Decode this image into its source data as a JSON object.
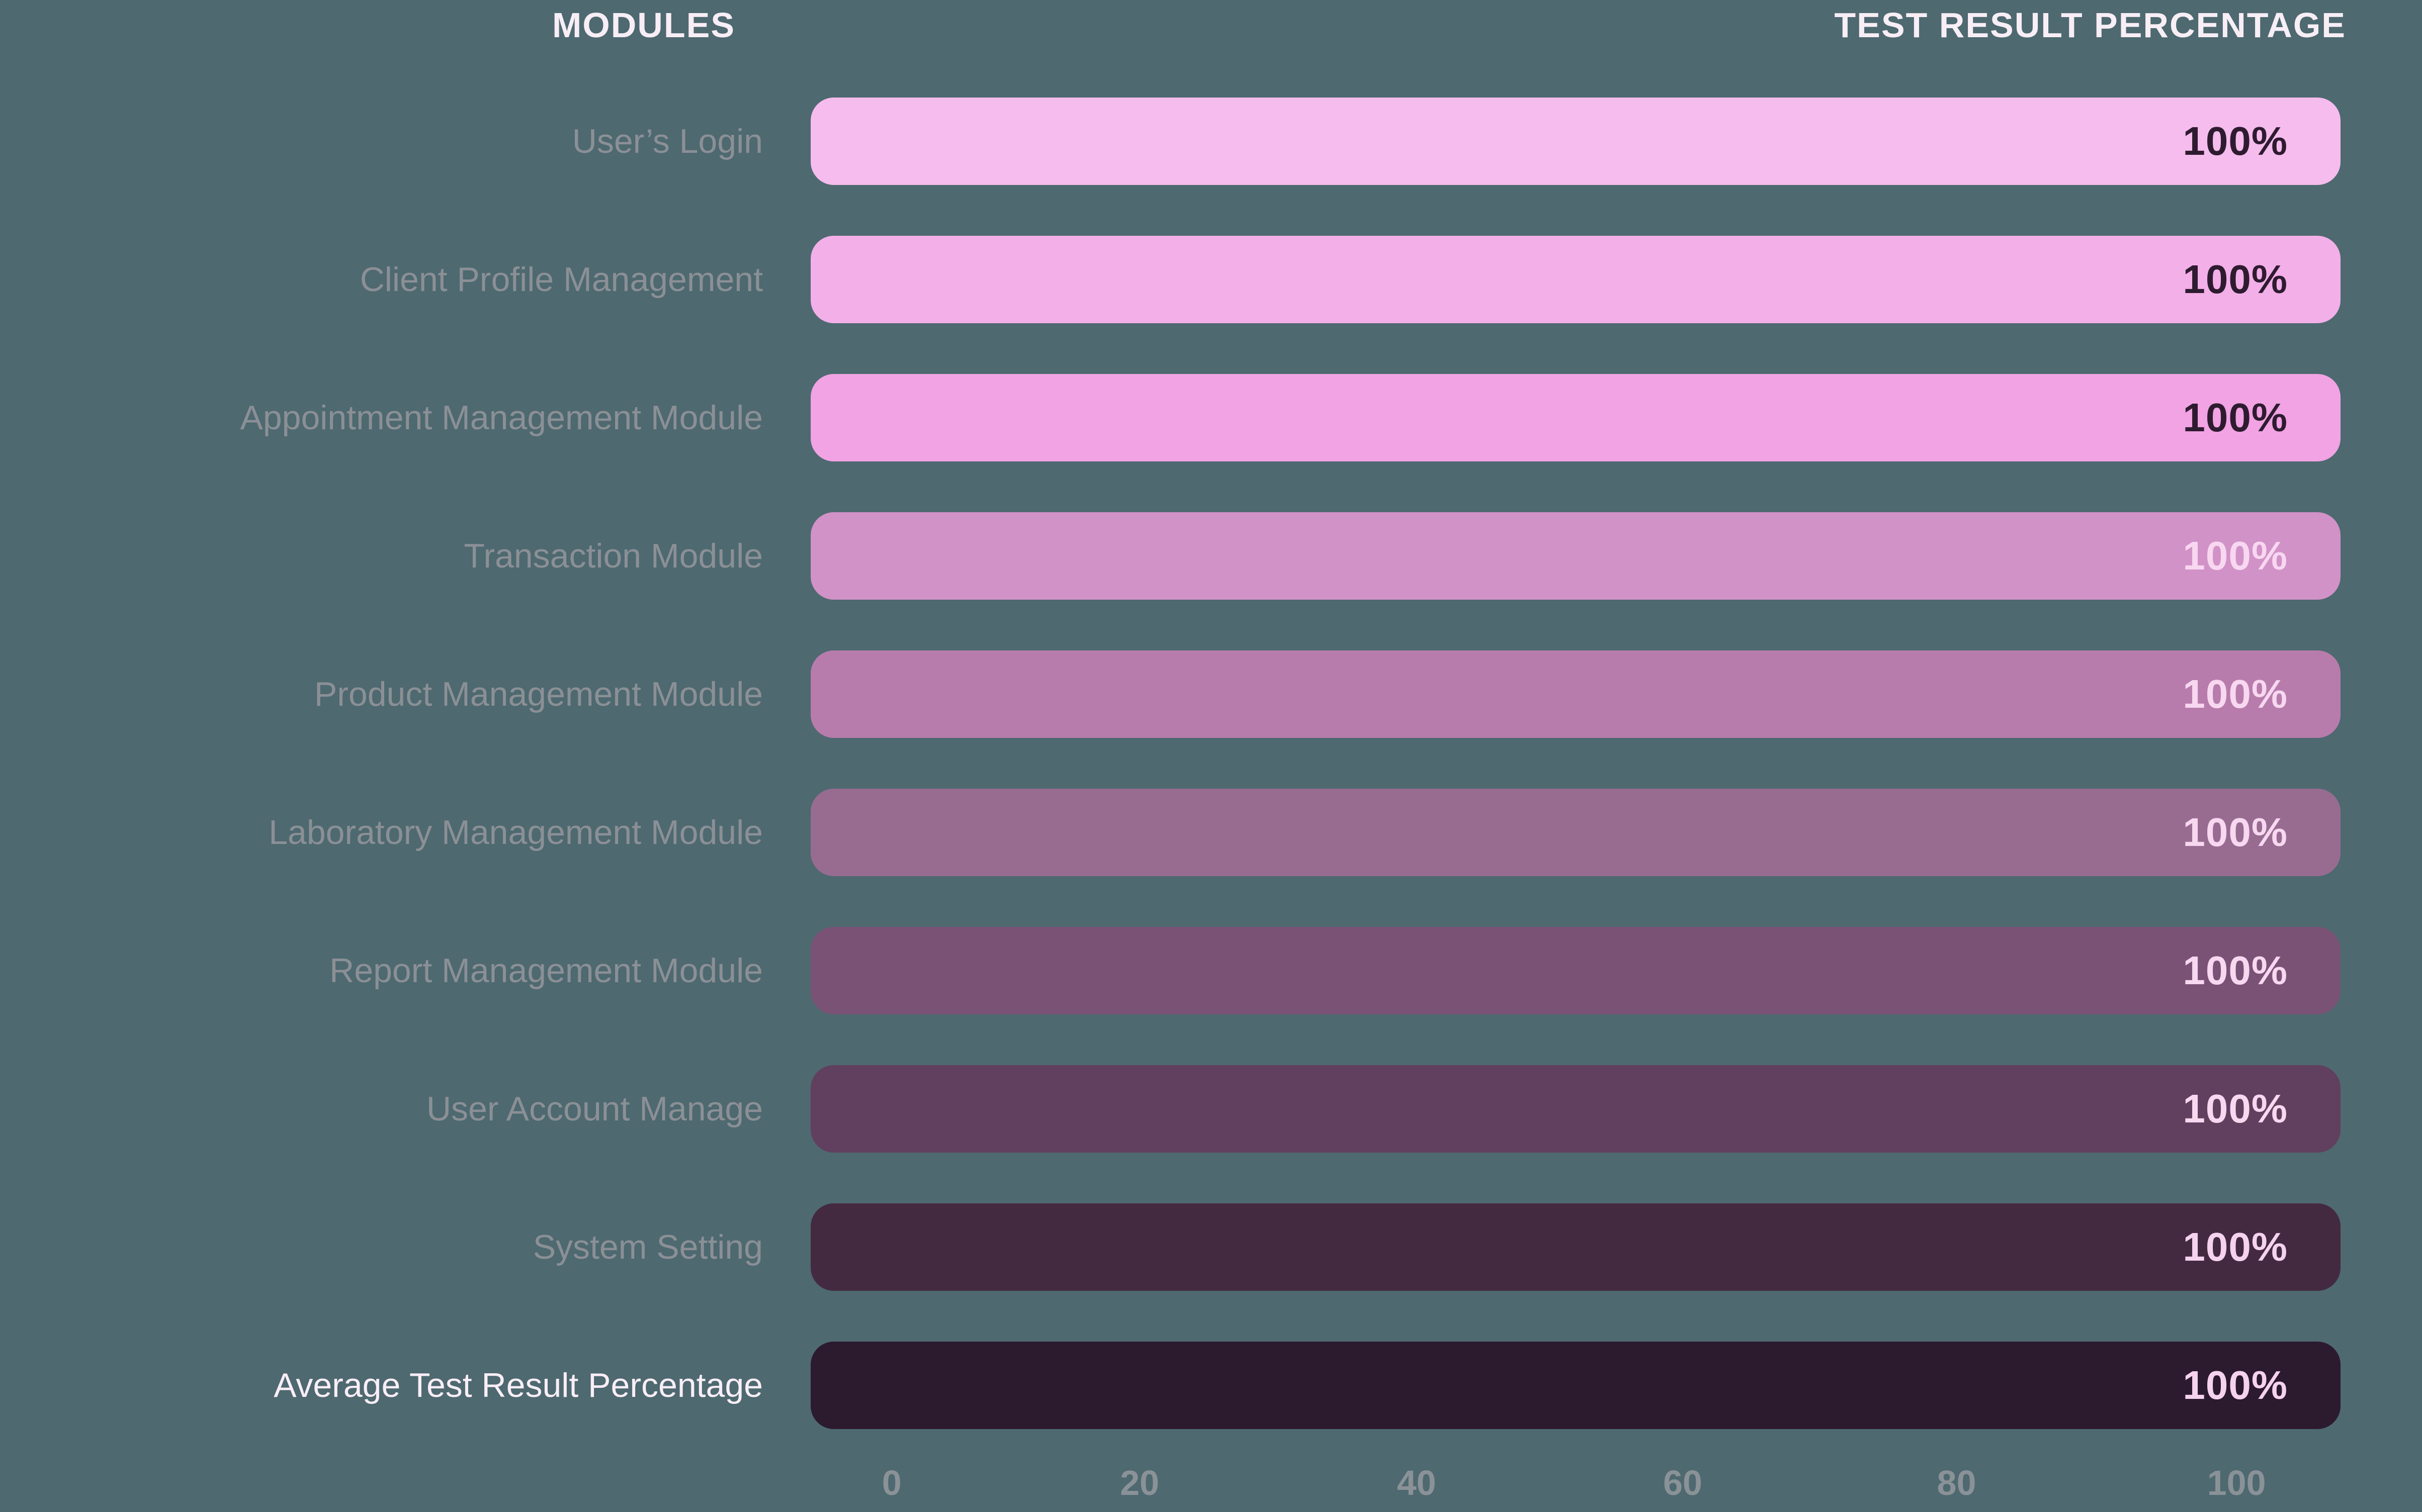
{
  "background": "#4e6970",
  "columns": {
    "modules": "MODULES",
    "result": "TEST RESULT PERCENTAGE"
  },
  "chart_data": {
    "type": "bar",
    "orientation": "horizontal",
    "title_left": "MODULES",
    "title_right": "TEST RESULT PERCENTAGE",
    "categories": [
      "User’s Login",
      "Client Profile Management",
      "Appointment Management Module",
      "Transaction Module",
      "Product Management Module",
      "Laboratory Management Module",
      "Report Management Module",
      "User Account Manage",
      "System Setting",
      "Average Test Result Percentage"
    ],
    "values": [
      100,
      100,
      100,
      100,
      100,
      100,
      100,
      100,
      100,
      100
    ],
    "value_labels": [
      "100%",
      "100%",
      "100%",
      "100%",
      "100%",
      "100%",
      "100%",
      "100%",
      "100%",
      "100%"
    ],
    "xlim": [
      0,
      100
    ],
    "x_ticks": [
      "0",
      "20",
      "40",
      "60",
      "80",
      "100"
    ],
    "grid": false,
    "legend": false,
    "bar_colors": [
      "#f5bced",
      "#f3afe8",
      "#f1a3e3",
      "#d192c7",
      "#b77cac",
      "#986c91",
      "#7a5275",
      "#613f5e",
      "#432a41",
      "#2c1a2f"
    ],
    "value_text_colors": [
      "#2e1b30",
      "#2e1b30",
      "#2e1b30",
      "#f8d7f0",
      "#f8d7f0",
      "#f8d7f0",
      "#f8d7f0",
      "#f8d7f0",
      "#f5d2ee",
      "#f5d2ee"
    ],
    "category_label_colors": [
      "#8b9096",
      "#8b9096",
      "#8b9096",
      "#8b9096",
      "#8b9096",
      "#8b9096",
      "#8b9096",
      "#8b9096",
      "#8b9096",
      "#f9eef7"
    ],
    "axis_text_color": "#8a9298"
  }
}
